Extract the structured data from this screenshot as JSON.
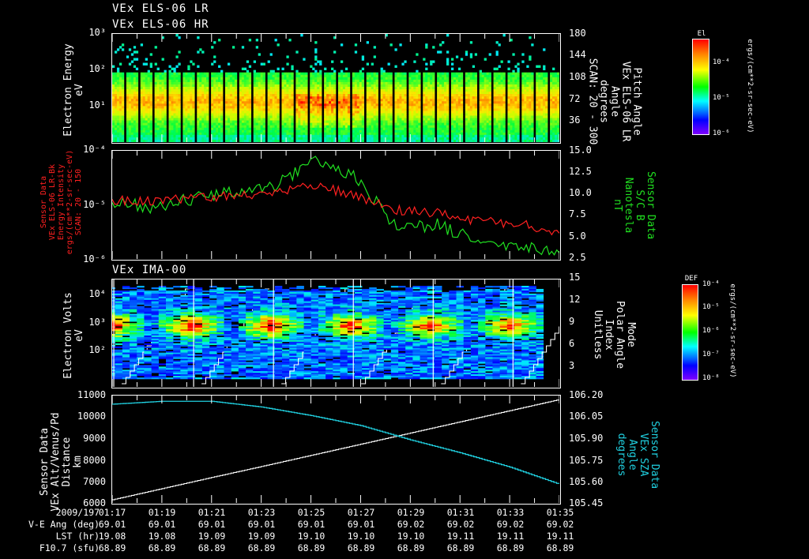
{
  "titles": {
    "panel1_line1": "VEx ELS-06 LR",
    "panel1_line2": "VEx ELS-06 HR",
    "panel3": "VEx IMA-00"
  },
  "colors": {
    "background": "#000000",
    "axis": "#ffffff",
    "red_series": "#ff2020",
    "green_series": "#20e020",
    "cyan_series": "#20d0e0",
    "white_series": "#ffffff"
  },
  "panel1": {
    "ylabel_left": "Electron Energy\neV",
    "yticks_left": [
      "10³",
      "10²",
      "10¹"
    ],
    "ylabel_right": "Pitch Angle\nVEx ELS-06 LR\nAngle\ndegrees\nSCAN: 20 - 300",
    "yticks_right": [
      "180",
      "144",
      "108",
      "72",
      "36"
    ],
    "colorbar_title": "El",
    "colorbar_ticks": [
      "10⁻⁴",
      "10⁻⁵",
      "10⁻⁶"
    ],
    "colorbar_units": "ergs/(cm**2-sr-sec-eV)"
  },
  "panel2": {
    "ylabel_left": "Sensor Data\nVEx ELS-06 LR-Bk\nEnergy Intensity\nergs/(cm**2-sr-sec-eV)\nSCAN: 20 - 150",
    "yticks_left": [
      "10⁻⁴",
      "10⁻⁵",
      "10⁻⁶"
    ],
    "ylabel_right": "Sensor Data\nS/C B\nNanotesla\nnT",
    "yticks_right": [
      "15.0",
      "12.5",
      "10.0",
      "7.5",
      "5.0",
      "2.5"
    ]
  },
  "panel3": {
    "ylabel_left": "Electron Volts\neV",
    "yticks_left": [
      "10⁴",
      "10³",
      "10²"
    ],
    "ylabel_right": "Mode\nPolar Angle\nIndex\nUnitless",
    "yticks_right": [
      "15",
      "12",
      "9",
      "6",
      "3"
    ],
    "colorbar_title": "DEF",
    "colorbar_ticks": [
      "10⁻⁴",
      "10⁻⁵",
      "10⁻⁶",
      "10⁻⁷",
      "10⁻⁸"
    ],
    "colorbar_units": "ergs/(cm**2-sr-sec-eV)"
  },
  "panel4": {
    "ylabel_left": "Sensor Data\nVEx Alt/Venus/Pd\nDistance\nkm",
    "yticks_left": [
      "11000",
      "10000",
      "9000",
      "8000",
      "7000",
      "6000"
    ],
    "ylabel_right": "Sensor Data\nVEx SZA\nAngle\ndegrees",
    "yticks_right": [
      "106.20",
      "106.05",
      "105.90",
      "105.75",
      "105.60",
      "105.45"
    ]
  },
  "footer": {
    "row_labels": [
      "2009/197",
      "V-E Ang (deg)",
      "LST (hr)",
      "F10.7 (sfu)"
    ],
    "times": [
      "01:17",
      "01:19",
      "01:21",
      "01:23",
      "01:25",
      "01:27",
      "01:29",
      "01:31",
      "01:33",
      "01:35"
    ],
    "ve_ang": [
      "69.01",
      "69.01",
      "69.01",
      "69.01",
      "69.01",
      "69.01",
      "69.02",
      "69.02",
      "69.02",
      "69.02"
    ],
    "lst": [
      "19.08",
      "19.08",
      "19.09",
      "19.09",
      "19.10",
      "19.10",
      "19.10",
      "19.11",
      "19.11",
      "19.11"
    ],
    "f107": [
      "68.89",
      "68.89",
      "68.89",
      "68.89",
      "68.89",
      "68.89",
      "68.89",
      "68.89",
      "68.89",
      "68.89"
    ]
  },
  "chart_data": [
    {
      "type": "heatmap",
      "title": "VEx ELS-06 LR / VEx ELS-06 HR",
      "xlabel": "Time (2009/197)",
      "ylabel": "Electron Energy (eV)",
      "ylabel_right": "Pitch Angle (degrees), SCAN: 20 - 300",
      "x_ticks": [
        "01:17",
        "01:19",
        "01:21",
        "01:23",
        "01:25",
        "01:27",
        "01:29",
        "01:31",
        "01:33",
        "01:35"
      ],
      "ylim": [
        1,
        1000
      ],
      "yscale": "log",
      "ylim_right": [
        0,
        180
      ],
      "colorbar": {
        "label": "El",
        "units": "ergs/(cm**2-sr-sec-eV)",
        "range": [
          1e-06,
          0.0001
        ],
        "scale": "log"
      },
      "description": "Dense green/yellow band 2-60 eV with peak intensity (red) ~3-20 eV around 01:26-01:27; sparse cyan counts up to 1000 eV; ~30 vertical black scan gaps."
    },
    {
      "type": "line",
      "title": "ELS-06 LR-Bk Energy Intensity & S/C B",
      "x_ticks": [
        "01:17",
        "01:19",
        "01:21",
        "01:23",
        "01:25",
        "01:27",
        "01:29",
        "01:31",
        "01:33",
        "01:35"
      ],
      "ylabel": "Energy Intensity ergs/(cm**2-sr-sec-eV) SCAN: 20 - 150",
      "ylim": [
        1e-06,
        0.0001
      ],
      "yscale": "log",
      "ylabel_right": "S/C B Nanotesla nT",
      "ylim_right": [
        2.5,
        15.0
      ],
      "series": [
        {
          "name": "Energy Intensity (red, left axis)",
          "color": "#ff2020",
          "x": [
            "01:17",
            "01:19",
            "01:21",
            "01:23",
            "01:25",
            "01:26",
            "01:27",
            "01:28",
            "01:29",
            "01:31",
            "01:33",
            "01:35"
          ],
          "values": [
            1.2e-05,
            1.2e-05,
            1.3e-05,
            1.5e-05,
            1.7e-05,
            2.3e-05,
            1.5e-05,
            8e-06,
            7e-06,
            5e-06,
            4.5e-06,
            3e-06
          ]
        },
        {
          "name": "S/C B (green, right axis nT)",
          "color": "#20e020",
          "x": [
            "01:17",
            "01:19",
            "01:21",
            "01:23",
            "01:25",
            "01:26",
            "01:27",
            "01:28",
            "01:29",
            "01:31",
            "01:33",
            "01:35"
          ],
          "values": [
            9.0,
            8.5,
            9.5,
            10.2,
            11.0,
            14.0,
            12.0,
            6.0,
            6.5,
            4.5,
            4.0,
            3.2
          ]
        }
      ]
    },
    {
      "type": "heatmap",
      "title": "VEx IMA-00",
      "ylabel": "Electron Volts (eV)",
      "ylim": [
        10,
        30000
      ],
      "yscale": "log",
      "ylabel_right": "Mode / Polar Angle Index (Unitless)",
      "ylim_right": [
        0,
        15
      ],
      "x_ticks": [
        "01:17",
        "01:19",
        "01:21",
        "01:23",
        "01:25",
        "01:27",
        "01:29",
        "01:31",
        "01:33",
        "01:35"
      ],
      "colorbar": {
        "label": "DEF",
        "units": "ergs/(cm**2-sr-sec-eV)",
        "range": [
          1e-08,
          0.0001
        ],
        "scale": "log"
      },
      "description": "Six ~3-minute scan cycles separated by white vertical lines; ion peak (red/yellow) near 500-1000 eV mid-cycle; white staircase line indicates polar angle index stepping 0-15."
    },
    {
      "type": "line",
      "title": "VEx Alt/Venus/Pd Distance & SZA",
      "x_ticks": [
        "01:17",
        "01:19",
        "01:21",
        "01:23",
        "01:25",
        "01:27",
        "01:29",
        "01:31",
        "01:33",
        "01:35"
      ],
      "ylabel": "Distance km",
      "ylim": [
        6000,
        11000
      ],
      "ylabel_right": "SZA Angle degrees",
      "ylim_right": [
        105.45,
        106.2
      ],
      "series": [
        {
          "name": "Altitude (white, left axis km)",
          "color": "#ffffff",
          "x": [
            "01:17",
            "01:19",
            "01:21",
            "01:23",
            "01:25",
            "01:27",
            "01:29",
            "01:31",
            "01:33",
            "01:35"
          ],
          "values": [
            6150,
            6670,
            7190,
            7700,
            8220,
            8740,
            9260,
            9780,
            10300,
            10820
          ]
        },
        {
          "name": "SZA (cyan, right axis deg)",
          "color": "#20d0e0",
          "x": [
            "01:17",
            "01:19",
            "01:21",
            "01:23",
            "01:25",
            "01:27",
            "01:29",
            "01:31",
            "01:33",
            "01:35"
          ],
          "values": [
            106.14,
            106.16,
            106.16,
            106.12,
            106.06,
            105.99,
            105.89,
            105.8,
            105.7,
            105.58
          ]
        }
      ]
    }
  ]
}
